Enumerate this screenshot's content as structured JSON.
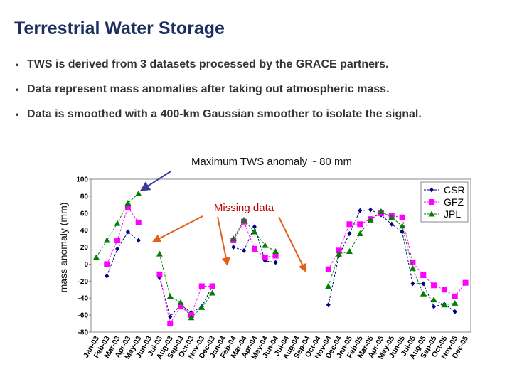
{
  "slide": {
    "title": "Terrestrial Water Storage",
    "bullets": [
      "TWS is derived from 3 datasets processed by the GRACE partners.",
      "Data represent mass anomalies after taking out atmospheric mass.",
      "Data is smoothed with a 400-km Gaussian smoother to isolate the signal."
    ]
  },
  "chart_data": {
    "type": "line",
    "annotations": [
      "Maximum TWS anomaly ~ 80 mm",
      "Missing data"
    ],
    "ylabel": "mass anomaly (mm)",
    "categories": [
      "Jan-03",
      "Feb-03",
      "Mar-03",
      "Apr-03",
      "May-03",
      "Jun-03",
      "Jul-03",
      "Aug-03",
      "Sep-03",
      "Oct-03",
      "Nov-03",
      "Dec-03",
      "Jan-04",
      "Feb-04",
      "Mar-04",
      "Apr-04",
      "May-04",
      "Jun-04",
      "Jul-04",
      "Aug-04",
      "Sep-04",
      "Oct-04",
      "Nov-04",
      "Dec-04",
      "Jan-05",
      "Feb-05",
      "Mar-05",
      "Apr-05",
      "May-05",
      "Jun-05",
      "Jul-05",
      "Aug-05",
      "Sep-05",
      "Oct-05",
      "Nov-05",
      "Dec-05"
    ],
    "series": [
      {
        "name": "CSR",
        "color": "#000080",
        "marker": "diamond",
        "values": [
          null,
          -14,
          18,
          38,
          28,
          null,
          -16,
          -62,
          -48,
          -57,
          -50,
          -26,
          null,
          20,
          16,
          44,
          4,
          2,
          null,
          null,
          null,
          null,
          -48,
          10,
          36,
          63,
          64,
          58,
          47,
          38,
          -23,
          -23,
          -50,
          -47,
          -56,
          null
        ]
      },
      {
        "name": "GFZ",
        "color": "#ff00ff",
        "marker": "square",
        "values": [
          null,
          0,
          28,
          67,
          49,
          null,
          -12,
          -70,
          -50,
          -60,
          -26,
          -26,
          null,
          28,
          50,
          18,
          8,
          10,
          null,
          null,
          null,
          null,
          -6,
          16,
          47,
          47,
          53,
          60,
          57,
          55,
          2,
          -13,
          -25,
          -30,
          -38,
          -22
        ]
      },
      {
        "name": "JPL",
        "color": "#008000",
        "marker": "triangle",
        "values": [
          8,
          28,
          48,
          72,
          83,
          null,
          12,
          -38,
          -45,
          -63,
          -51,
          -34,
          null,
          30,
          52,
          38,
          22,
          15,
          null,
          null,
          null,
          null,
          -26,
          12,
          15,
          36,
          52,
          62,
          55,
          45,
          -5,
          -35,
          -42,
          -48,
          -46,
          null
        ]
      }
    ],
    "ylim": [
      -80,
      100
    ],
    "yticks": [
      -80,
      -60,
      -40,
      -20,
      0,
      20,
      40,
      60,
      80,
      100
    ],
    "grid": false,
    "legend": "upper right"
  }
}
